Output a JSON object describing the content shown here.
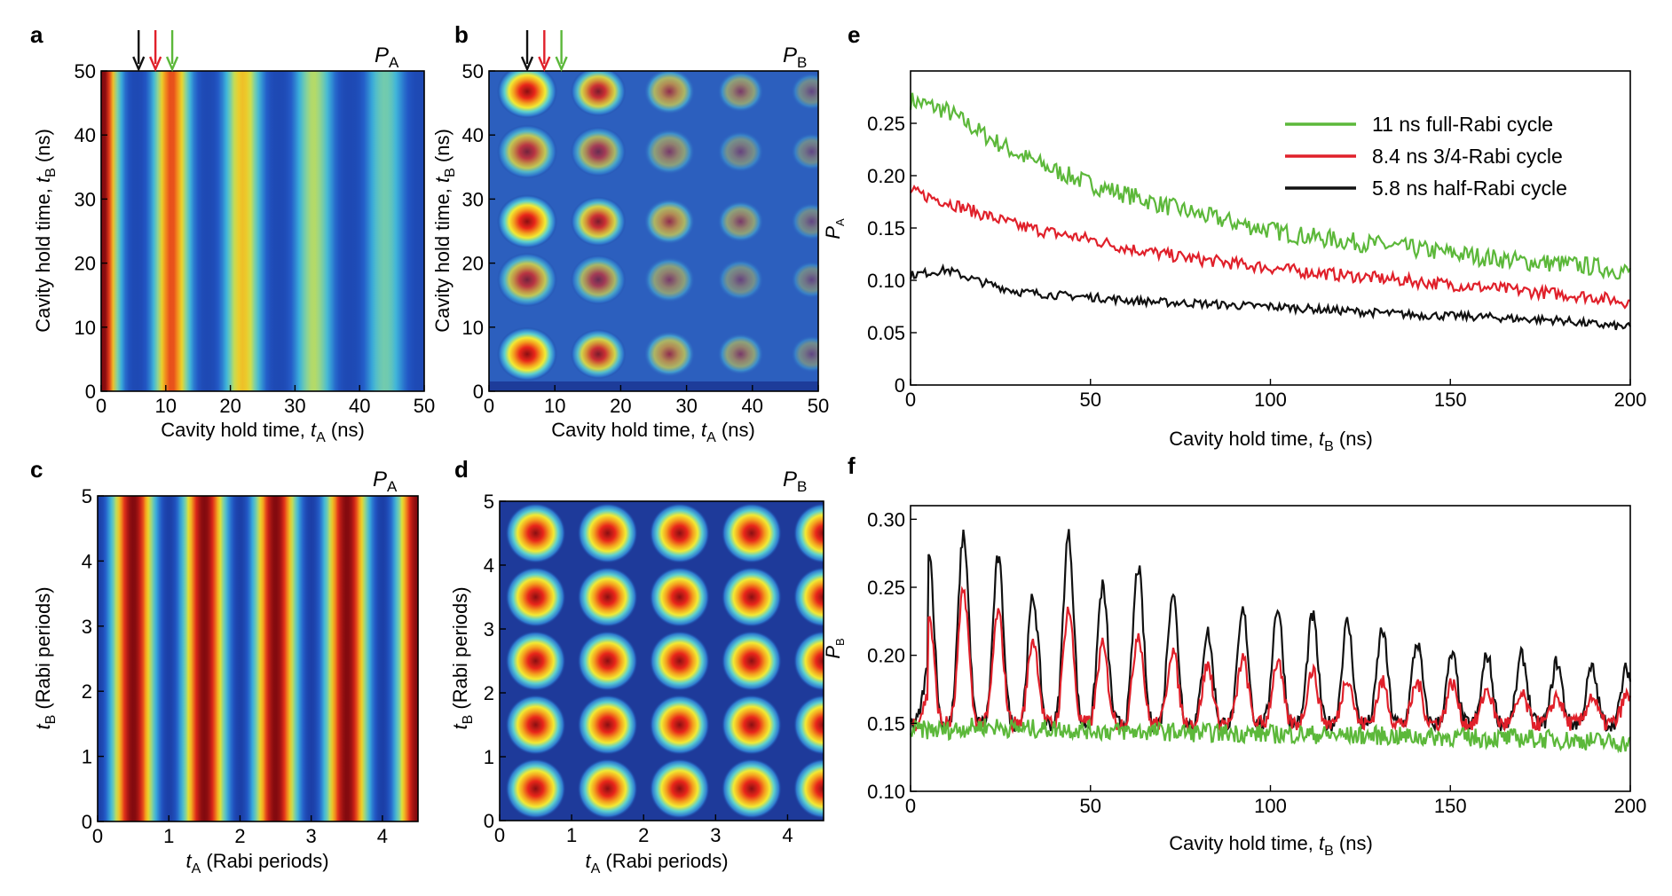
{
  "panels": {
    "a": {
      "letter": "a",
      "corner_label": "P",
      "corner_sub": "A"
    },
    "b": {
      "letter": "b",
      "corner_label": "P",
      "corner_sub": "B"
    },
    "c": {
      "letter": "c",
      "corner_label": "P",
      "corner_sub": "A"
    },
    "d": {
      "letter": "d",
      "corner_label": "P",
      "corner_sub": "B"
    },
    "e": {
      "letter": "e"
    },
    "f": {
      "letter": "f"
    }
  },
  "colors": {
    "green": "#5cb83a",
    "red": "#e0202a",
    "black": "#111111"
  },
  "chart_data": [
    {
      "id": "a",
      "type": "heatmap",
      "xlabel": "Cavity hold time, ",
      "xlabel_var": "t",
      "xlabel_sub": "A",
      "xlabel_unit": " (ns)",
      "ylabel": "Cavity hold time, ",
      "ylabel_var": "t",
      "ylabel_sub": "B",
      "ylabel_unit": " (ns)",
      "xlim": [
        0,
        50
      ],
      "ylim": [
        0,
        50
      ],
      "xticks": [
        "0",
        "10",
        "20",
        "30",
        "40",
        "50"
      ],
      "yticks": [
        "0",
        "10",
        "20",
        "30",
        "40",
        "50"
      ],
      "arrows_x_ns": [
        5.8,
        8.4,
        11
      ],
      "arrow_colors": [
        "black",
        "red",
        "green"
      ]
    },
    {
      "id": "b",
      "type": "heatmap",
      "xlabel": "Cavity hold time, ",
      "xlabel_var": "t",
      "xlabel_sub": "A",
      "xlabel_unit": " (ns)",
      "ylabel": "Cavity hold time, ",
      "ylabel_var": "t",
      "ylabel_sub": "B",
      "ylabel_unit": " (ns)",
      "xlim": [
        0,
        50
      ],
      "ylim": [
        0,
        50
      ],
      "xticks": [
        "0",
        "10",
        "20",
        "30",
        "40",
        "50"
      ],
      "yticks": [
        "0",
        "10",
        "20",
        "30",
        "40",
        "50"
      ],
      "arrows_x_ns": [
        5.8,
        8.4,
        11
      ],
      "arrow_colors": [
        "black",
        "red",
        "green"
      ]
    },
    {
      "id": "c",
      "type": "heatmap",
      "xlabel_var": "t",
      "xlabel_sub": "A",
      "xlabel": " (Rabi periods)",
      "ylabel_var": "t",
      "ylabel_sub": "B",
      "ylabel": " (Rabi periods)",
      "xlim": [
        0,
        4.5
      ],
      "ylim": [
        0,
        5
      ],
      "xticks": [
        "0",
        "1",
        "2",
        "3",
        "4"
      ],
      "yticks": [
        "0",
        "1",
        "2",
        "3",
        "4",
        "5"
      ]
    },
    {
      "id": "d",
      "type": "heatmap",
      "xlabel_var": "t",
      "xlabel_sub": "A",
      "xlabel": " (Rabi periods)",
      "ylabel_var": "t",
      "ylabel_sub": "B",
      "ylabel": " (Rabi periods)",
      "xlim": [
        0,
        4.5
      ],
      "ylim": [
        0,
        5
      ],
      "xticks": [
        "0",
        "1",
        "2",
        "3",
        "4"
      ],
      "yticks": [
        "0",
        "1",
        "2",
        "3",
        "4",
        "5"
      ]
    },
    {
      "id": "e",
      "type": "line",
      "xlabel": "Cavity hold time, ",
      "xlabel_var": "t",
      "xlabel_sub": "B",
      "xlabel_unit": " (ns)",
      "ylabel": "P",
      "ylabel_sub": "A",
      "xlim": [
        0,
        200
      ],
      "ylim": [
        0,
        0.3
      ],
      "xticks": [
        "0",
        "50",
        "100",
        "150",
        "200"
      ],
      "yticks": [
        "0",
        "0.05",
        "0.10",
        "0.15",
        "0.20",
        "0.25"
      ],
      "legend_position": "top-right",
      "series": [
        {
          "name": "11 ns full-Rabi cycle",
          "color": "green",
          "x": [
            0,
            10,
            20,
            30,
            40,
            50,
            60,
            70,
            80,
            90,
            100,
            110,
            120,
            130,
            140,
            150,
            160,
            170,
            180,
            190,
            200
          ],
          "y": [
            0.272,
            0.262,
            0.24,
            0.22,
            0.205,
            0.192,
            0.182,
            0.172,
            0.163,
            0.155,
            0.148,
            0.142,
            0.138,
            0.134,
            0.13,
            0.126,
            0.122,
            0.118,
            0.116,
            0.113,
            0.108
          ]
        },
        {
          "name": "8.4 ns 3/4-Rabi cycle",
          "color": "red",
          "x": [
            0,
            10,
            20,
            30,
            40,
            50,
            60,
            70,
            80,
            90,
            100,
            110,
            120,
            130,
            140,
            150,
            160,
            170,
            180,
            190,
            200
          ],
          "y": [
            0.185,
            0.175,
            0.163,
            0.152,
            0.145,
            0.139,
            0.131,
            0.125,
            0.12,
            0.116,
            0.112,
            0.108,
            0.105,
            0.102,
            0.099,
            0.096,
            0.093,
            0.09,
            0.087,
            0.084,
            0.079
          ]
        },
        {
          "name": "5.8 ns half-Rabi cycle",
          "color": "black",
          "x": [
            0,
            10,
            20,
            30,
            40,
            50,
            60,
            70,
            80,
            90,
            100,
            110,
            120,
            130,
            140,
            150,
            160,
            170,
            180,
            190,
            200
          ],
          "y": [
            0.105,
            0.11,
            0.098,
            0.089,
            0.086,
            0.084,
            0.081,
            0.079,
            0.078,
            0.076,
            0.075,
            0.073,
            0.071,
            0.069,
            0.067,
            0.066,
            0.065,
            0.063,
            0.062,
            0.058,
            0.055
          ]
        }
      ]
    },
    {
      "id": "f",
      "type": "line",
      "xlabel": "Cavity hold time, ",
      "xlabel_var": "t",
      "xlabel_sub": "B",
      "xlabel_unit": " (ns)",
      "ylabel": "P",
      "ylabel_sub": "B",
      "xlim": [
        0,
        200
      ],
      "ylim": [
        0.1,
        0.31
      ],
      "xticks": [
        "0",
        "50",
        "100",
        "150",
        "200"
      ],
      "yticks": [
        "0.10",
        "0.15",
        "0.20",
        "0.25",
        "0.30"
      ],
      "oscillation_period_ns": 9.7,
      "series": [
        {
          "color": "black",
          "x": [
            0,
            5,
            10,
            16,
            20,
            25,
            30,
            35,
            40,
            46,
            50,
            55,
            60,
            65,
            70,
            75,
            80,
            85,
            90,
            95,
            100,
            110,
            120,
            130,
            140,
            150,
            160,
            170,
            180,
            190,
            200
          ],
          "y": [
            0.14,
            0.28,
            0.15,
            0.29,
            0.15,
            0.27,
            0.15,
            0.24,
            0.15,
            0.3,
            0.15,
            0.24,
            0.15,
            0.27,
            0.15,
            0.24,
            0.15,
            0.21,
            0.15,
            0.24,
            0.15,
            0.23,
            0.22,
            0.22,
            0.21,
            0.2,
            0.2,
            0.2,
            0.19,
            0.19,
            0.16
          ]
        },
        {
          "color": "red",
          "x": [
            0,
            5,
            10,
            16,
            20,
            25,
            30,
            35,
            40,
            46,
            50,
            55,
            60,
            65,
            70,
            75,
            80,
            85,
            90,
            95,
            100,
            110,
            120,
            130,
            140,
            150,
            160,
            170,
            180,
            190,
            200
          ],
          "y": [
            0.15,
            0.23,
            0.15,
            0.25,
            0.15,
            0.23,
            0.15,
            0.21,
            0.15,
            0.24,
            0.15,
            0.2,
            0.15,
            0.22,
            0.15,
            0.2,
            0.15,
            0.19,
            0.15,
            0.2,
            0.15,
            0.19,
            0.19,
            0.18,
            0.18,
            0.18,
            0.17,
            0.17,
            0.17,
            0.17,
            0.16
          ]
        },
        {
          "color": "green",
          "x": [
            0,
            10,
            20,
            30,
            40,
            50,
            60,
            70,
            80,
            90,
            100,
            110,
            120,
            130,
            140,
            150,
            160,
            170,
            180,
            190,
            200
          ],
          "y": [
            0.145,
            0.145,
            0.148,
            0.146,
            0.146,
            0.145,
            0.144,
            0.144,
            0.143,
            0.143,
            0.142,
            0.142,
            0.141,
            0.141,
            0.14,
            0.14,
            0.139,
            0.139,
            0.138,
            0.137,
            0.135
          ]
        }
      ]
    }
  ]
}
